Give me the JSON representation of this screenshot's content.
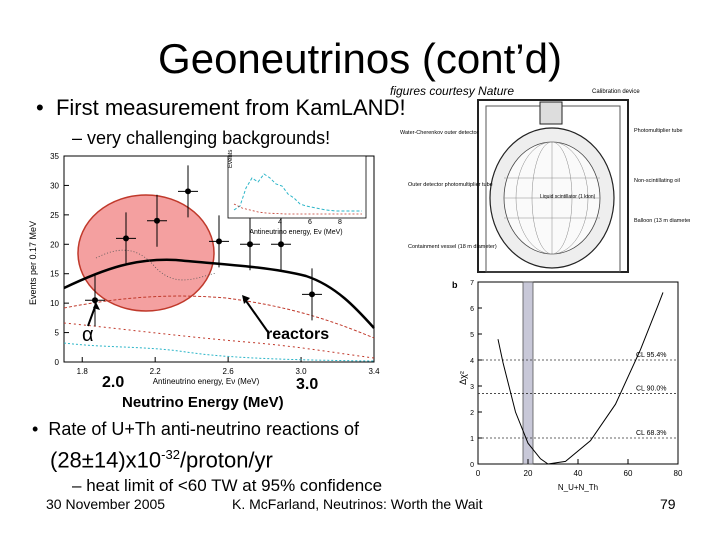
{
  "slide": {
    "title": "Geoneutrinos (cont’d)",
    "courtesy": "figures courtesy Nature",
    "bullet1": "First measurement from KamLAND!",
    "bullet1_sub": "very challenging backgrounds!",
    "bullet2": "Rate of U+Th anti-neutrino reactions of",
    "rate_main": "(28±14)x10",
    "rate_exp": "-32",
    "rate_unit": "/proton/yr",
    "heat": "heat limit of <60 TW at 95% confidence",
    "footer_date": "30 November 2005",
    "footer_author": "K. McFarland, Neutrinos: Worth the Wait",
    "page_number": "79"
  },
  "labels": {
    "alpha": "α",
    "reactors": "reactors",
    "energy_lo": "2.0",
    "energy_hi": "3.0",
    "energy_axis": "Neutrino Energy (MeV)"
  },
  "detector": {
    "calibration": "Calibration device",
    "water_cherenkov": "Water-Cherenkov outer detector",
    "pmt": "Photomultiplier tube",
    "nonscint": "Non-scintillating oil",
    "outer_pmt": "Outer detector photomultiplier tube",
    "liquid": "Liquid scintillator (1 kton)",
    "balloon": "Balloon (13 m diameter)",
    "containment": "Containment vessel (18 m diameter)"
  },
  "chart_data": [
    {
      "type": "scatter",
      "xlabel": "Antineutrino energy, Eν (MeV)",
      "ylabel": "Events per 0.17 MeV",
      "x_ticks": [
        "1.8",
        "2.2",
        "2.6",
        "3.0",
        "3.4"
      ],
      "y_ticks": [
        "0",
        "5",
        "10",
        "15",
        "20",
        "25",
        "30",
        "35"
      ],
      "xlim": [
        1.7,
        3.4
      ],
      "ylim": [
        0,
        35
      ],
      "points": [
        {
          "x": 1.87,
          "y": 10.5
        },
        {
          "x": 2.04,
          "y": 21.0
        },
        {
          "x": 2.21,
          "y": 24.0
        },
        {
          "x": 2.38,
          "y": 29.0
        },
        {
          "x": 2.55,
          "y": 20.5
        },
        {
          "x": 2.72,
          "y": 20.0
        },
        {
          "x": 2.89,
          "y": 20.0
        },
        {
          "x": 3.06,
          "y": 11.5
        }
      ],
      "inset": {
        "xlabel": "Antineutrino energy, Eν (MeV)",
        "ylabel": "Events per 0.17 MeV",
        "x_ticks": [
          "4",
          "6",
          "8"
        ],
        "y_ticks": [
          "0",
          "10",
          "20"
        ]
      }
    },
    {
      "type": "line",
      "panel_label": "b",
      "xlabel": "N_U+N_Th",
      "ylabel": "Δχ²",
      "x_ticks": [
        "0",
        "20",
        "40",
        "60",
        "80"
      ],
      "y_ticks": [
        "0",
        "1",
        "2",
        "3",
        "4",
        "5",
        "6",
        "7"
      ],
      "xlim": [
        0,
        80
      ],
      "ylim": [
        0,
        7
      ],
      "cl_lines": [
        {
          "name": "CL 95.4%",
          "y": 4.0
        },
        {
          "name": "CL 90.0%",
          "y": 2.71
        },
        {
          "name": "CL 68.3%",
          "y": 1.0
        }
      ],
      "curve": [
        [
          8,
          4.8
        ],
        [
          10,
          3.9
        ],
        [
          15,
          2.0
        ],
        [
          20,
          0.8
        ],
        [
          25,
          0.2
        ],
        [
          28,
          0.0
        ],
        [
          35,
          0.1
        ],
        [
          45,
          0.9
        ],
        [
          55,
          2.3
        ],
        [
          65,
          4.4
        ],
        [
          72,
          6.1
        ],
        [
          74,
          6.6
        ]
      ]
    }
  ]
}
